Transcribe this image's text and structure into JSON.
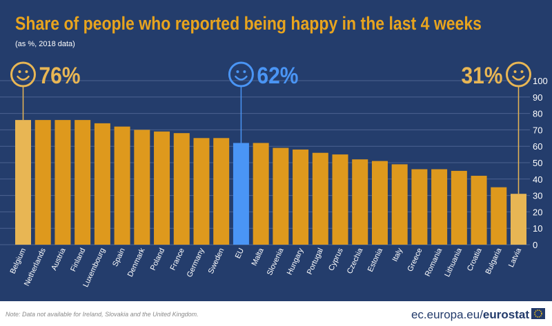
{
  "chart_data": {
    "type": "bar",
    "title": "Share of people who reported being happy in the last 4 weeks",
    "subtitle": "(as %, 2018 data)",
    "categories": [
      "Belgium",
      "Netherlands",
      "Austria",
      "Finland",
      "Luxembourg",
      "Spain",
      "Denmark",
      "Poland",
      "France",
      "Germany",
      "Sweden",
      "EU",
      "Malta",
      "Slovenia",
      "Hungary",
      "Portugal",
      "Cyprus",
      "Czechia",
      "Estonia",
      "Italy",
      "Greece",
      "Romania",
      "Lithuania",
      "Croatia",
      "Bulgaria",
      "Latvia"
    ],
    "values": [
      76,
      76,
      76,
      76,
      74,
      72,
      70,
      69,
      68,
      65,
      65,
      62,
      62,
      59,
      58,
      56,
      55,
      52,
      51,
      49,
      46,
      46,
      45,
      42,
      35,
      31
    ],
    "ylim": [
      0,
      100
    ],
    "yticks": [
      0,
      10,
      20,
      30,
      40,
      50,
      60,
      70,
      80,
      90,
      100
    ],
    "axis_position": "right",
    "grid": true,
    "callouts": [
      {
        "category": "Belgium",
        "label": "76%",
        "icon": "smiley-icon",
        "color": "#e8b654"
      },
      {
        "category": "EU",
        "label": "62%",
        "icon": "smiley-icon",
        "color": "#4a95f5"
      },
      {
        "category": "Latvia",
        "label": "31%",
        "icon": "smiley-icon",
        "color": "#e8b654"
      }
    ],
    "colors": {
      "default": "#de991d",
      "highlight": "#e8b654",
      "eu": "#4a95f5",
      "background": "#243d6c",
      "title": "#e8a41e"
    }
  },
  "footer": {
    "note": "Note: Data not available for Ireland, Slovakia and the United Kingdom.",
    "site": "ec.europa.eu/",
    "brand": "eurostat"
  }
}
